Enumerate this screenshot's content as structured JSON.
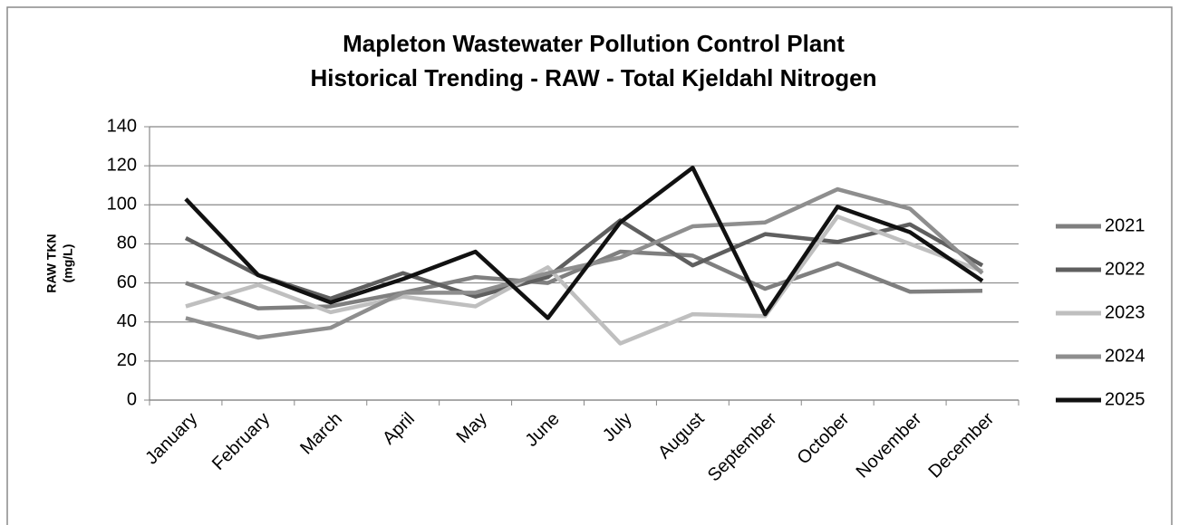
{
  "chart_data": {
    "type": "line",
    "title": [
      "Mapleton Wastewater Pollution Control Plant",
      "Historical Trending - RAW - Total Kjeldahl Nitrogen"
    ],
    "y_label": [
      "RAW TKN",
      "(mg/L)"
    ],
    "categories": [
      "January",
      "February",
      "March",
      "April",
      "May",
      "June",
      "July",
      "August",
      "September",
      "October",
      "November",
      "December"
    ],
    "series": [
      {
        "name": "2021",
        "color": "#7f7f7f",
        "values": [
          60,
          47,
          48,
          55,
          63,
          60,
          76,
          74,
          57,
          70,
          55.5,
          56
        ]
      },
      {
        "name": "2022",
        "color": "#5f5f5f",
        "values": [
          83,
          64,
          52,
          65,
          53,
          63,
          92,
          69,
          85,
          81,
          90,
          69
        ]
      },
      {
        "name": "2023",
        "color": "#bfbfbf",
        "values": [
          48,
          59,
          45,
          53,
          48,
          68,
          29,
          44,
          43,
          94,
          80,
          66
        ]
      },
      {
        "name": "2024",
        "color": "#8e8e8e",
        "values": [
          42,
          32,
          37,
          55,
          55,
          65,
          73,
          89,
          91,
          108,
          98,
          65
        ]
      },
      {
        "name": "2025",
        "color": "#111111",
        "values": [
          103,
          64,
          50,
          62,
          76,
          42,
          91,
          119,
          44,
          99,
          86,
          61
        ]
      }
    ],
    "ylim": [
      0,
      140
    ],
    "yticks": [
      0,
      20,
      40,
      60,
      80,
      100,
      120,
      140
    ],
    "grid": true,
    "legend": "right"
  }
}
